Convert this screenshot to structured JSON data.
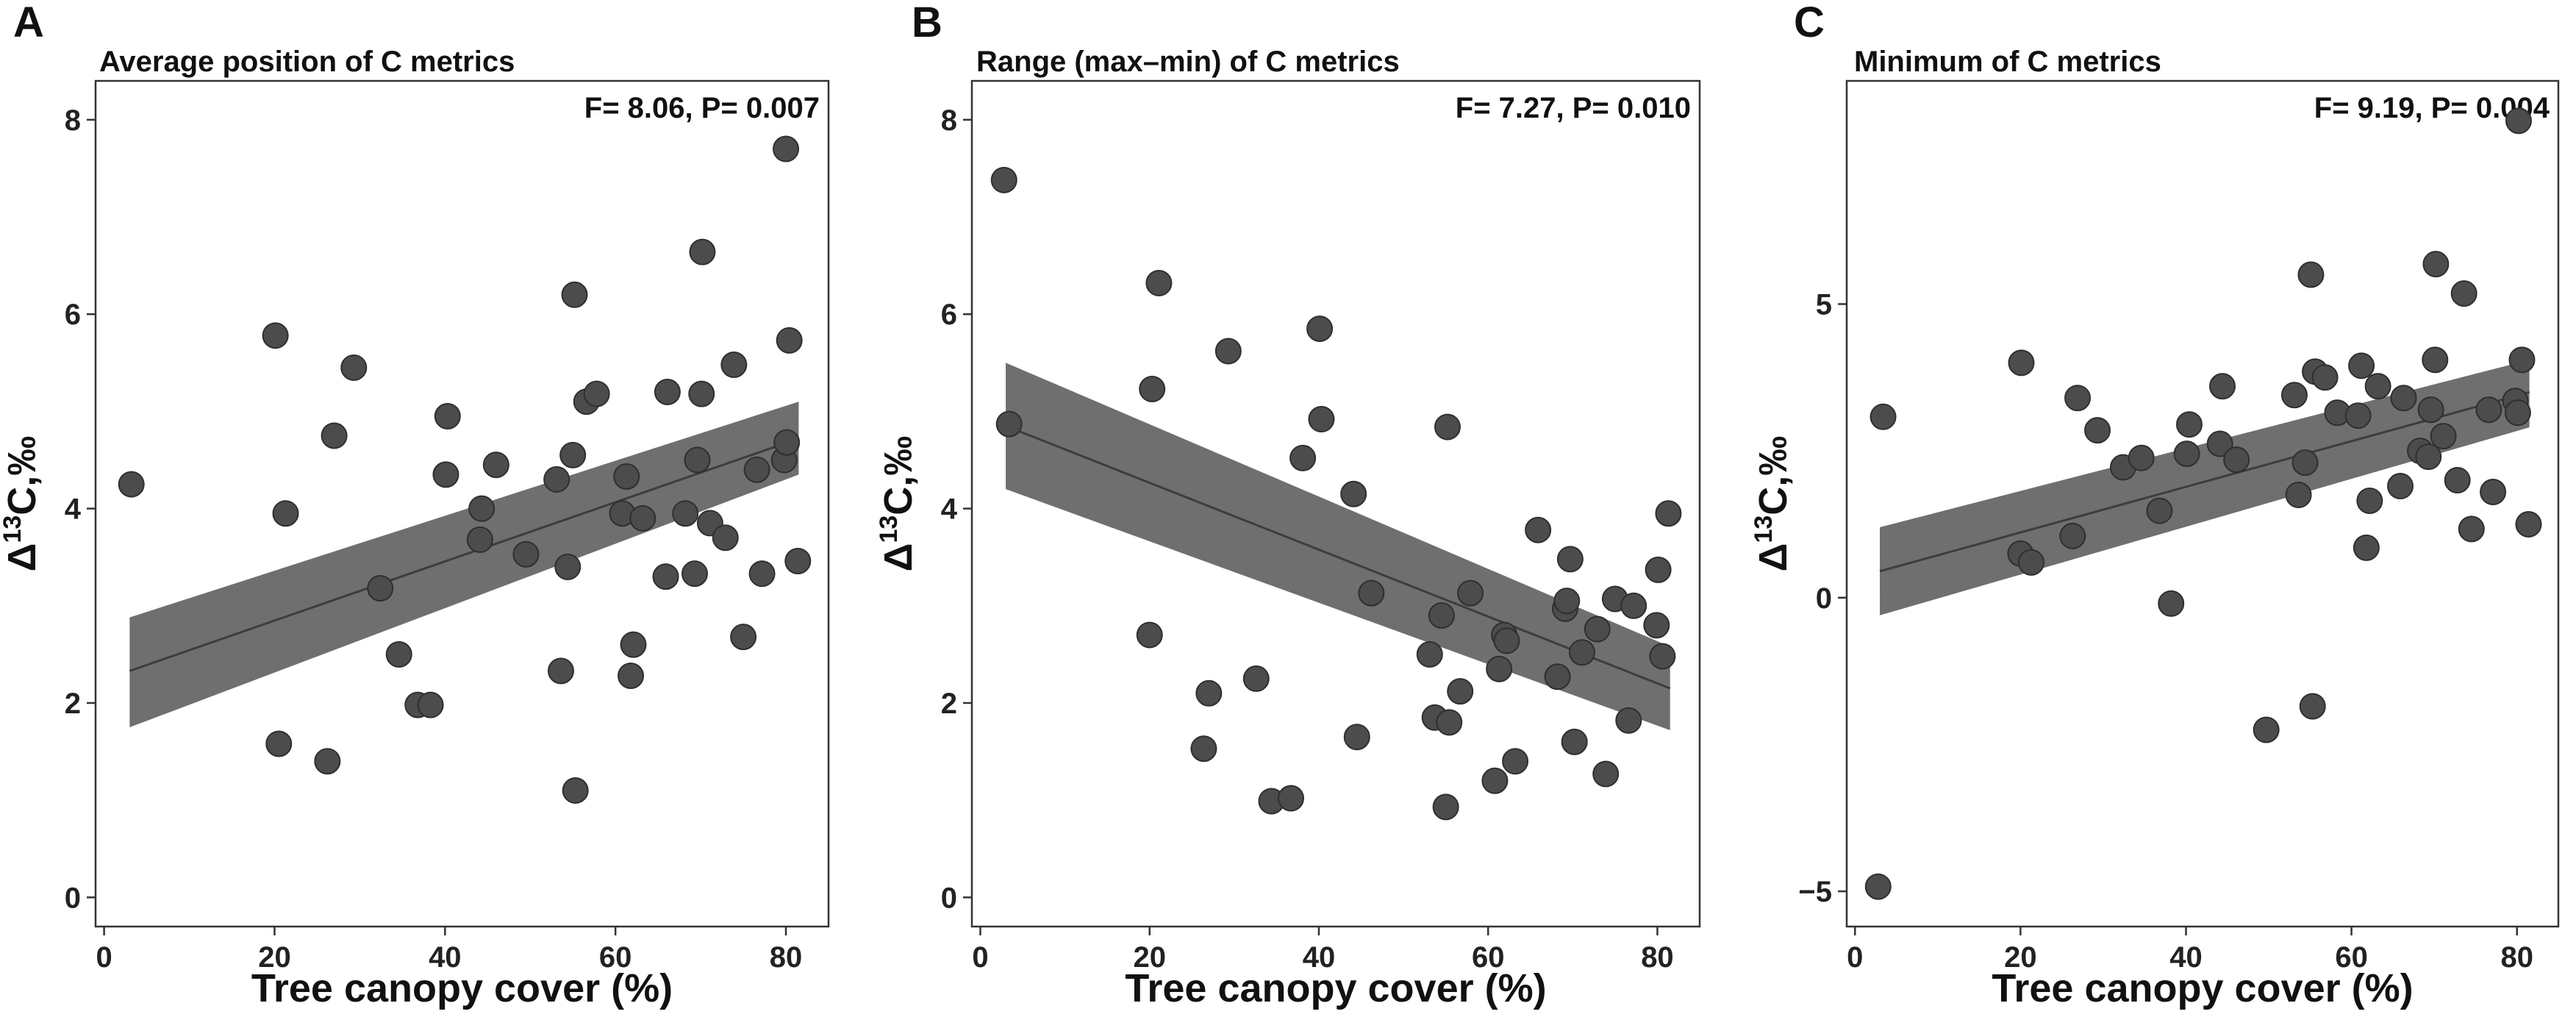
{
  "figure": {
    "x_axis_title": "Tree canopy cover (%)"
  },
  "chart_data": [
    {
      "type": "scatter",
      "panel": "A",
      "title": "Average position of C metrics",
      "stat": "F= 8.06, P= 0.007",
      "xlabel": "Tree canopy cover (%)",
      "ylabel": "Δ13C,‰",
      "ylabel_delta": "Δ",
      "ylabel_sup": "13",
      "ylabel_rest": "C,‰",
      "xlim": [
        -1,
        85
      ],
      "ylim": [
        -0.3,
        8.4
      ],
      "xticks": [
        0,
        20,
        40,
        60,
        80
      ],
      "yticks": [
        0,
        2,
        4,
        6,
        8
      ],
      "xtick_labels": [
        "0",
        "20",
        "40",
        "60",
        "80"
      ],
      "ytick_labels": [
        "0",
        "2",
        "4",
        "6",
        "8"
      ],
      "fit": {
        "x": [
          3,
          81.5
        ],
        "y": [
          2.33,
          4.72
        ]
      },
      "ci_band": {
        "x": [
          3,
          81.5
        ],
        "lower": [
          1.75,
          4.35
        ],
        "upper": [
          2.88,
          5.1
        ]
      },
      "points": [
        [
          3.2,
          4.25
        ],
        [
          20.1,
          5.78
        ],
        [
          20.5,
          1.58
        ],
        [
          21.3,
          3.95
        ],
        [
          26.2,
          1.4
        ],
        [
          27,
          4.75
        ],
        [
          29.3,
          5.45
        ],
        [
          32.4,
          3.18
        ],
        [
          34.6,
          2.5
        ],
        [
          36.8,
          1.98
        ],
        [
          38.3,
          1.98
        ],
        [
          40.1,
          4.35
        ],
        [
          40.3,
          4.95
        ],
        [
          44.1,
          3.68
        ],
        [
          44.3,
          4.0
        ],
        [
          46,
          4.45
        ],
        [
          49.5,
          3.53
        ],
        [
          53.1,
          4.3
        ],
        [
          53.6,
          2.33
        ],
        [
          54.4,
          3.4
        ],
        [
          55,
          4.55
        ],
        [
          55.2,
          6.2
        ],
        [
          55.3,
          1.1
        ],
        [
          56.6,
          5.1
        ],
        [
          57.8,
          5.18
        ],
        [
          60.8,
          3.95
        ],
        [
          61.3,
          4.33
        ],
        [
          61.8,
          2.28
        ],
        [
          62.1,
          2.6
        ],
        [
          63.2,
          3.9
        ],
        [
          65.9,
          3.3
        ],
        [
          66.1,
          5.2
        ],
        [
          68.2,
          3.95
        ],
        [
          69.3,
          3.33
        ],
        [
          69.6,
          4.5
        ],
        [
          70.1,
          5.18
        ],
        [
          70.2,
          6.64
        ],
        [
          71.1,
          3.85
        ],
        [
          72.9,
          3.7
        ],
        [
          73.9,
          5.48
        ],
        [
          75,
          2.68
        ],
        [
          76.6,
          4.4
        ],
        [
          77.2,
          3.33
        ],
        [
          79.8,
          4.5
        ],
        [
          80,
          7.7
        ],
        [
          80.1,
          4.68
        ],
        [
          80.4,
          5.73
        ],
        [
          81.4,
          3.46
        ]
      ]
    },
    {
      "type": "scatter",
      "panel": "B",
      "title": "Range (max–min) of C metrics",
      "stat": "F= 7.27, P= 0.010",
      "xlabel": "Tree canopy cover (%)",
      "ylabel": "Δ13C,‰",
      "ylabel_delta": "Δ",
      "ylabel_sup": "13",
      "ylabel_rest": "C,‰",
      "xlim": [
        -1,
        85
      ],
      "ylim": [
        -0.3,
        8.4
      ],
      "xticks": [
        0,
        20,
        40,
        60,
        80
      ],
      "yticks": [
        0,
        2,
        4,
        6,
        8
      ],
      "xtick_labels": [
        "0",
        "20",
        "40",
        "60",
        "80"
      ],
      "ytick_labels": [
        "0",
        "2",
        "4",
        "6",
        "8"
      ],
      "fit": {
        "x": [
          3,
          81.5
        ],
        "y": [
          4.85,
          2.15
        ]
      },
      "ci_band": {
        "x": [
          3,
          81.5
        ],
        "lower": [
          4.2,
          1.72
        ],
        "upper": [
          5.5,
          2.58
        ]
      },
      "points": [
        [
          2.8,
          7.38
        ],
        [
          3.4,
          4.87
        ],
        [
          20,
          2.7
        ],
        [
          20.3,
          5.23
        ],
        [
          21.1,
          6.32
        ],
        [
          26.4,
          1.53
        ],
        [
          27,
          2.1
        ],
        [
          29.3,
          5.62
        ],
        [
          32.6,
          2.25
        ],
        [
          34.4,
          0.99
        ],
        [
          36.7,
          1.02
        ],
        [
          38.1,
          4.52
        ],
        [
          40.1,
          5.85
        ],
        [
          40.3,
          4.92
        ],
        [
          44.1,
          4.15
        ],
        [
          44.5,
          1.65
        ],
        [
          46.2,
          3.13
        ],
        [
          53.1,
          2.5
        ],
        [
          53.7,
          1.85
        ],
        [
          54.5,
          2.9
        ],
        [
          55,
          0.93
        ],
        [
          55.2,
          4.84
        ],
        [
          55.4,
          1.8
        ],
        [
          56.7,
          2.12
        ],
        [
          57.9,
          3.13
        ],
        [
          60.8,
          1.2
        ],
        [
          61.3,
          2.35
        ],
        [
          61.9,
          2.7
        ],
        [
          62.2,
          2.64
        ],
        [
          63.2,
          1.4
        ],
        [
          65.9,
          3.78
        ],
        [
          68.2,
          2.27
        ],
        [
          69.1,
          2.97
        ],
        [
          69.3,
          3.05
        ],
        [
          69.7,
          3.48
        ],
        [
          70.2,
          1.6
        ],
        [
          71.1,
          2.52
        ],
        [
          72.9,
          2.76
        ],
        [
          73.9,
          1.27
        ],
        [
          75,
          3.07
        ],
        [
          76.6,
          1.82
        ],
        [
          77.2,
          3.0
        ],
        [
          79.9,
          2.8
        ],
        [
          80.1,
          3.37
        ],
        [
          80.6,
          2.48
        ],
        [
          81.3,
          3.95
        ]
      ]
    },
    {
      "type": "scatter",
      "panel": "C",
      "title": "Minimum of C metrics",
      "stat": "F= 9.19, P= 0.004",
      "xlabel": "Tree canopy cover (%)",
      "ylabel": "Δ13C,‰",
      "ylabel_delta": "Δ",
      "ylabel_sup": "13",
      "ylabel_rest": "C,‰",
      "xlim": [
        -1,
        85
      ],
      "ylim": [
        -5.6,
        8.8
      ],
      "xticks": [
        0,
        20,
        40,
        60,
        80
      ],
      "yticks": [
        -5,
        0,
        5
      ],
      "xtick_labels": [
        "0",
        "20",
        "40",
        "60",
        "80"
      ],
      "ytick_labels": [
        "−5",
        "0",
        "5"
      ],
      "fit": {
        "x": [
          3,
          81.5
        ],
        "y": [
          0.45,
          3.5
        ]
      },
      "ci_band": {
        "x": [
          3,
          81.5
        ],
        "lower": [
          -0.3,
          2.9
        ],
        "upper": [
          1.2,
          4.05
        ]
      },
      "points": [
        [
          2.8,
          -4.92
        ],
        [
          3.4,
          3.08
        ],
        [
          20,
          0.75
        ],
        [
          20.1,
          4.0
        ],
        [
          21.3,
          0.6
        ],
        [
          26.3,
          1.05
        ],
        [
          26.9,
          3.4
        ],
        [
          29.3,
          2.85
        ],
        [
          32.4,
          2.22
        ],
        [
          34.6,
          2.38
        ],
        [
          36.8,
          1.48
        ],
        [
          38.2,
          -0.1
        ],
        [
          40.1,
          2.45
        ],
        [
          40.4,
          2.95
        ],
        [
          44.1,
          2.62
        ],
        [
          44.4,
          3.6
        ],
        [
          46.1,
          2.35
        ],
        [
          49.7,
          -2.25
        ],
        [
          53.1,
          3.45
        ],
        [
          53.6,
          1.75
        ],
        [
          54.4,
          2.3
        ],
        [
          55.1,
          5.5
        ],
        [
          55.3,
          -1.85
        ],
        [
          55.6,
          3.85
        ],
        [
          56.8,
          3.75
        ],
        [
          58.3,
          3.15
        ],
        [
          60.8,
          3.1
        ],
        [
          61.2,
          3.95
        ],
        [
          61.8,
          0.85
        ],
        [
          62.2,
          1.65
        ],
        [
          63.2,
          3.6
        ],
        [
          65.9,
          1.9
        ],
        [
          66.3,
          3.4
        ],
        [
          68.3,
          2.5
        ],
        [
          69.3,
          2.4
        ],
        [
          69.6,
          3.2
        ],
        [
          70.1,
          4.05
        ],
        [
          70.2,
          5.68
        ],
        [
          71.1,
          2.75
        ],
        [
          72.8,
          2.0
        ],
        [
          73.6,
          5.18
        ],
        [
          74.5,
          1.17
        ],
        [
          76.6,
          3.2
        ],
        [
          77.1,
          1.8
        ],
        [
          79.8,
          3.35
        ],
        [
          80.1,
          3.15
        ],
        [
          80.2,
          8.12
        ],
        [
          80.6,
          4.05
        ],
        [
          81.4,
          1.25
        ]
      ]
    }
  ]
}
